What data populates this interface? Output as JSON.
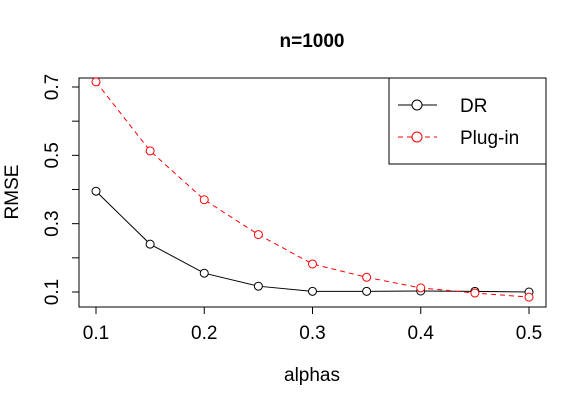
{
  "chart_data": {
    "type": "line",
    "title": "n=1000",
    "xlabel": "alphas",
    "ylabel": "RMSE",
    "x": [
      0.1,
      0.15,
      0.2,
      0.25,
      0.3,
      0.35,
      0.4,
      0.45,
      0.5
    ],
    "xticks": [
      "0.1",
      "0.2",
      "0.3",
      "0.4",
      "0.5"
    ],
    "yticks": [
      "0.1",
      "0.3",
      "0.5",
      "0.7"
    ],
    "xlim": [
      0.1,
      0.5
    ],
    "ylim": [
      0.08,
      0.72
    ],
    "grid": false,
    "legend_position": "top-right",
    "series": [
      {
        "name": "DR",
        "color": "#000000",
        "line_style": "solid",
        "marker": "open-circle",
        "values": [
          0.395,
          0.24,
          0.155,
          0.117,
          0.102,
          0.102,
          0.103,
          0.102,
          0.1
        ]
      },
      {
        "name": "Plug-in",
        "color": "#ff0000",
        "line_style": "dashed",
        "marker": "open-circle",
        "values": [
          0.715,
          0.513,
          0.37,
          0.268,
          0.182,
          0.143,
          0.112,
          0.097,
          0.085
        ]
      }
    ]
  }
}
